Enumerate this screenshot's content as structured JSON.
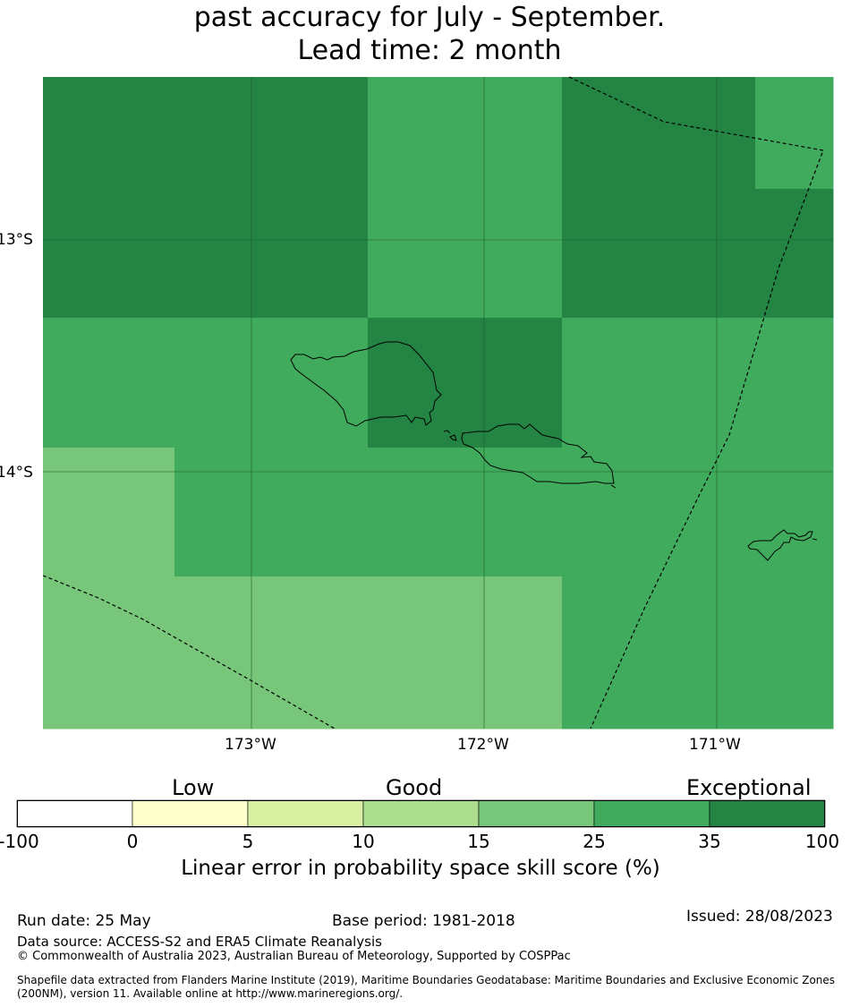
{
  "title": {
    "line1": "past accuracy for July - September.",
    "line2": "Lead time: 2 month"
  },
  "map": {
    "colors": {
      "c15_25": "#78c679",
      "c25_35": "#41ab5d",
      "c35_100": "#238443",
      "land_outline": "#000000",
      "boundary": "#000000",
      "grid": "#1a5c2e"
    },
    "lat_labels": [
      "13°S",
      "14°S"
    ],
    "lon_labels": [
      "173°W",
      "172°W",
      "171°W"
    ],
    "cell_classes": [
      [
        "c35_100",
        "c35_100",
        "c35_100",
        "c35_100",
        "c35_100",
        "c25_35",
        "c25_35",
        "c25_35",
        "c35_100",
        "c35_100",
        "c35_100",
        "c25_35"
      ],
      [
        "c35_100",
        "c35_100",
        "c35_100",
        "c35_100",
        "c35_100",
        "c25_35",
        "c25_35",
        "c25_35",
        "c35_100",
        "c35_100",
        "c35_100",
        "c35_100"
      ],
      [
        "c25_35",
        "c25_35",
        "c25_35",
        "c25_35",
        "c25_35",
        "c35_100",
        "c35_100",
        "c35_100",
        "c25_35",
        "c25_35",
        "c25_35",
        "c25_35"
      ],
      [
        "c15_25",
        "c15_25",
        "c25_35",
        "c25_35",
        "c25_35",
        "c25_35",
        "c25_35",
        "c25_35",
        "c25_35",
        "c25_35",
        "c25_35",
        "c25_35"
      ],
      [
        "c15_25",
        "c15_25",
        "c15_25",
        "c15_25",
        "c15_25",
        "c15_25",
        "c15_25",
        "c15_25",
        "c25_35",
        "c25_35",
        "c25_35",
        "c25_35"
      ]
    ]
  },
  "colorbar": {
    "category_labels": [
      "Low",
      "Good",
      "Exceptional"
    ],
    "ticks": [
      "-100",
      "0",
      "5",
      "10",
      "15",
      "25",
      "35",
      "100"
    ],
    "colors": [
      "#ffffff",
      "#ffffcc",
      "#d9f0a3",
      "#addd8e",
      "#78c679",
      "#41ab5d",
      "#238443"
    ],
    "title": "Linear error in probability space skill score (%)"
  },
  "footer": {
    "run_date": "Run date: 25 May",
    "base_period": "Base period: 1981-2018",
    "issued": "Issued: 28/08/2023",
    "data_source": "Data source: ACCESS-S2 and ERA5 Climate Reanalysis",
    "copyright": "© Commonwealth of Australia 2023, Australian Bureau of Meteorology, Supported by COSPPac",
    "shapefile_line1": "Shapefile data extracted from Flanders Marine Institute (2019), Maritime Boundaries Geodatabase: Maritime Boundaries and Exclusive Economic Zones",
    "shapefile_line2": "(200NM), version 11. Available online at http://www.marineregions.org/."
  }
}
